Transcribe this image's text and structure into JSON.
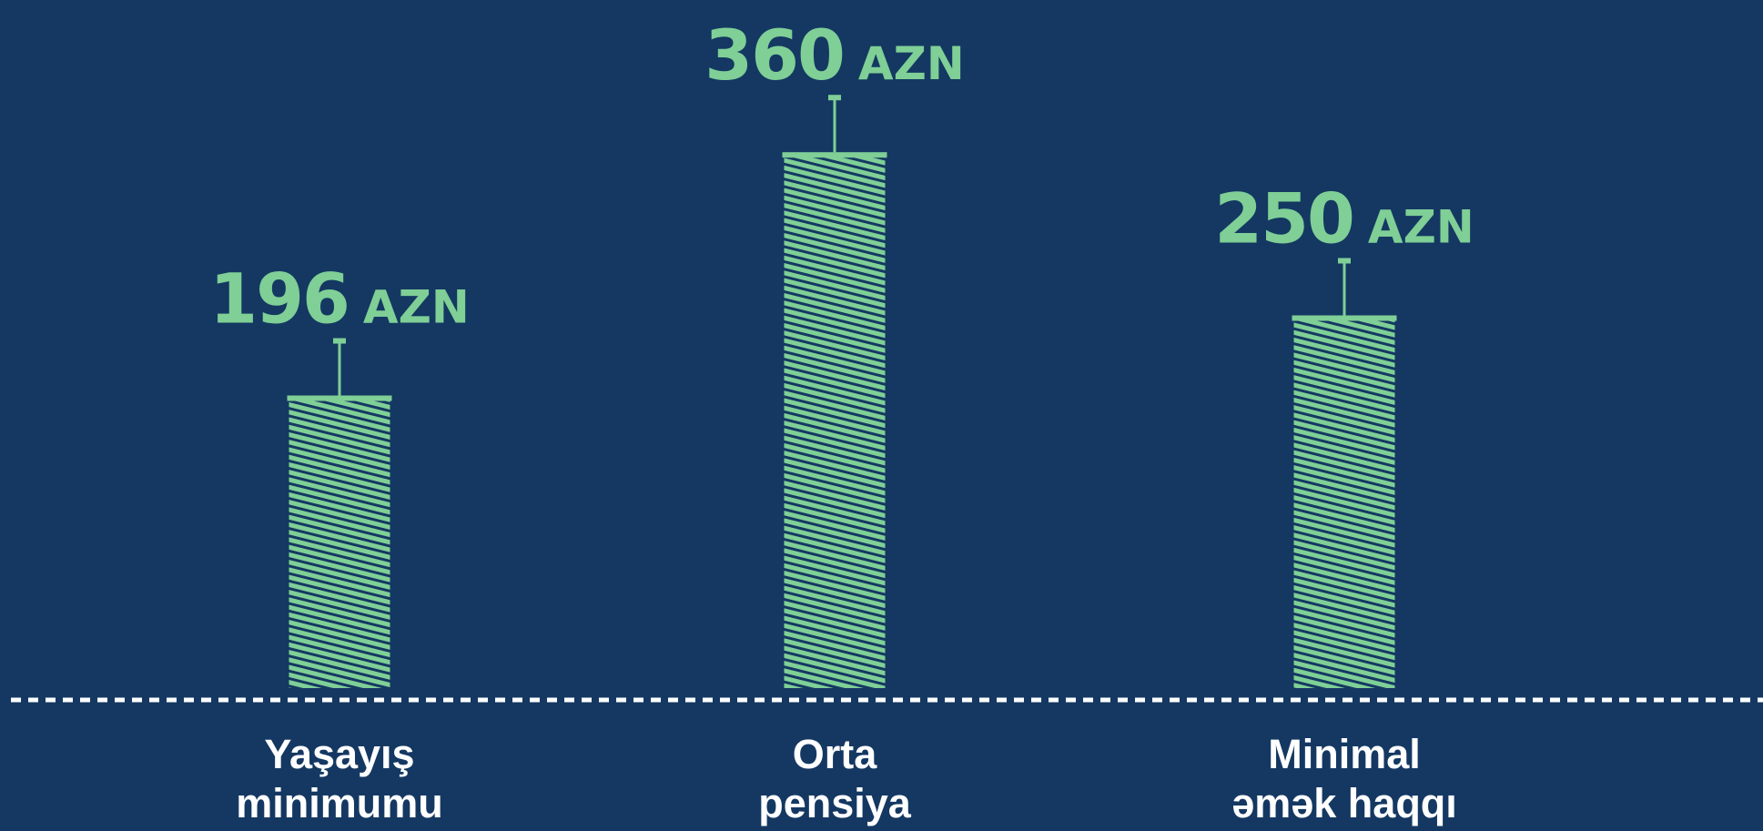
{
  "chart_data": {
    "type": "bar",
    "categories": [
      [
        "Yaşayış",
        "minimumu"
      ],
      [
        "Orta",
        "pensiya"
      ],
      [
        "Minimal",
        "əmək haqqı"
      ]
    ],
    "values": [
      196,
      360,
      250
    ],
    "unit": "AZN",
    "ylim": [
      0,
      390
    ],
    "grid": false,
    "legend": "none"
  },
  "colors": {
    "background": "#143862",
    "bar": "#7fcf96",
    "baseline": "#ffffff",
    "category_text": "#ffffff"
  }
}
